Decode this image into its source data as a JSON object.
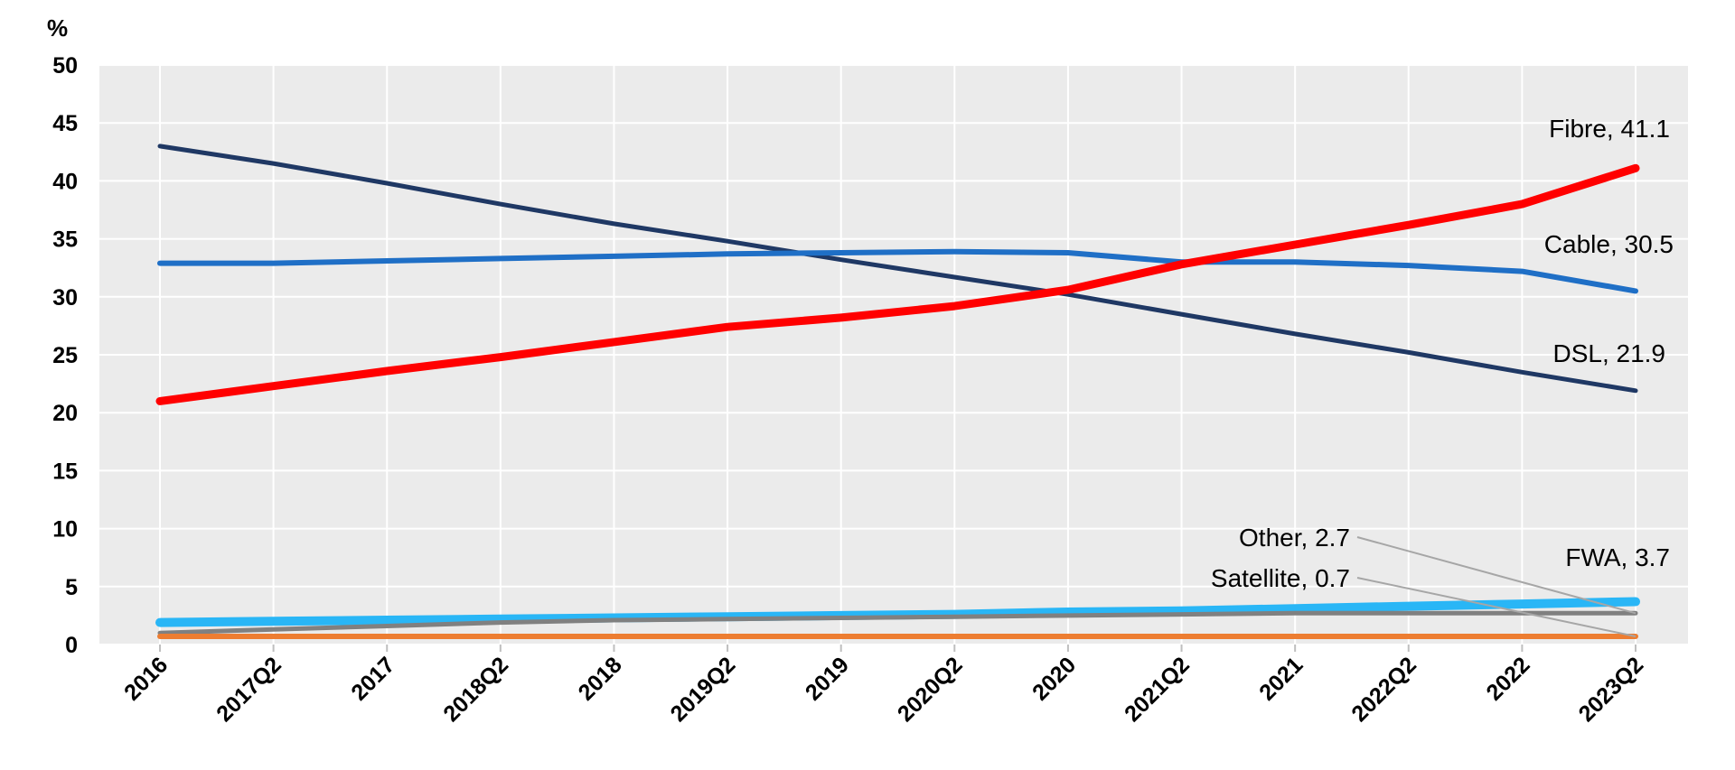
{
  "chart_data": {
    "type": "line",
    "title": "",
    "xlabel": "",
    "ylabel": "%",
    "ylim": [
      0,
      50
    ],
    "yticks": [
      0,
      5,
      10,
      15,
      20,
      25,
      30,
      35,
      40,
      45,
      50
    ],
    "grid": true,
    "legend": "none",
    "categories": [
      "2016",
      "2017Q2",
      "2017",
      "2018Q2",
      "2018",
      "2019Q2",
      "2019",
      "2020Q2",
      "2020",
      "2021Q2",
      "2021",
      "2022Q2",
      "2022",
      "2023Q2"
    ],
    "series": [
      {
        "name": "DSL",
        "label": "DSL, 21.9",
        "color": "#1f3864",
        "values": [
          43.0,
          41.5,
          39.8,
          38.0,
          36.3,
          34.8,
          33.2,
          31.7,
          30.2,
          28.5,
          26.8,
          25.2,
          23.5,
          21.9
        ]
      },
      {
        "name": "Cable",
        "label": "Cable, 30.5",
        "color": "#1f6fc6",
        "values": [
          32.9,
          32.9,
          33.1,
          33.3,
          33.5,
          33.7,
          33.8,
          33.9,
          33.8,
          33.0,
          33.0,
          32.7,
          32.2,
          30.5
        ]
      },
      {
        "name": "Fibre",
        "label": "Fibre, 41.1",
        "color": "#ff0000",
        "values": [
          21.0,
          22.3,
          23.6,
          24.8,
          26.1,
          27.4,
          28.2,
          29.2,
          30.6,
          32.8,
          34.5,
          36.2,
          38.0,
          41.1
        ]
      },
      {
        "name": "FWA",
        "label": "FWA, 3.7",
        "color": "#29b6f6",
        "values": [
          1.9,
          2.0,
          2.1,
          2.2,
          2.3,
          2.4,
          2.5,
          2.6,
          2.8,
          2.9,
          3.1,
          3.3,
          3.5,
          3.7
        ]
      },
      {
        "name": "Other",
        "label": "Other, 2.7",
        "color": "#808080",
        "values": [
          1.0,
          1.3,
          1.6,
          1.9,
          2.1,
          2.2,
          2.3,
          2.4,
          2.5,
          2.6,
          2.7,
          2.7,
          2.7,
          2.7
        ]
      },
      {
        "name": "Satellite",
        "label": "Satellite, 0.7",
        "color": "#ed7d31",
        "values": [
          0.7,
          0.7,
          0.7,
          0.7,
          0.7,
          0.7,
          0.7,
          0.7,
          0.7,
          0.7,
          0.7,
          0.7,
          0.7,
          0.7
        ]
      }
    ],
    "leader_color": "#a6a6a6",
    "plot_background": "#ebebeb"
  }
}
